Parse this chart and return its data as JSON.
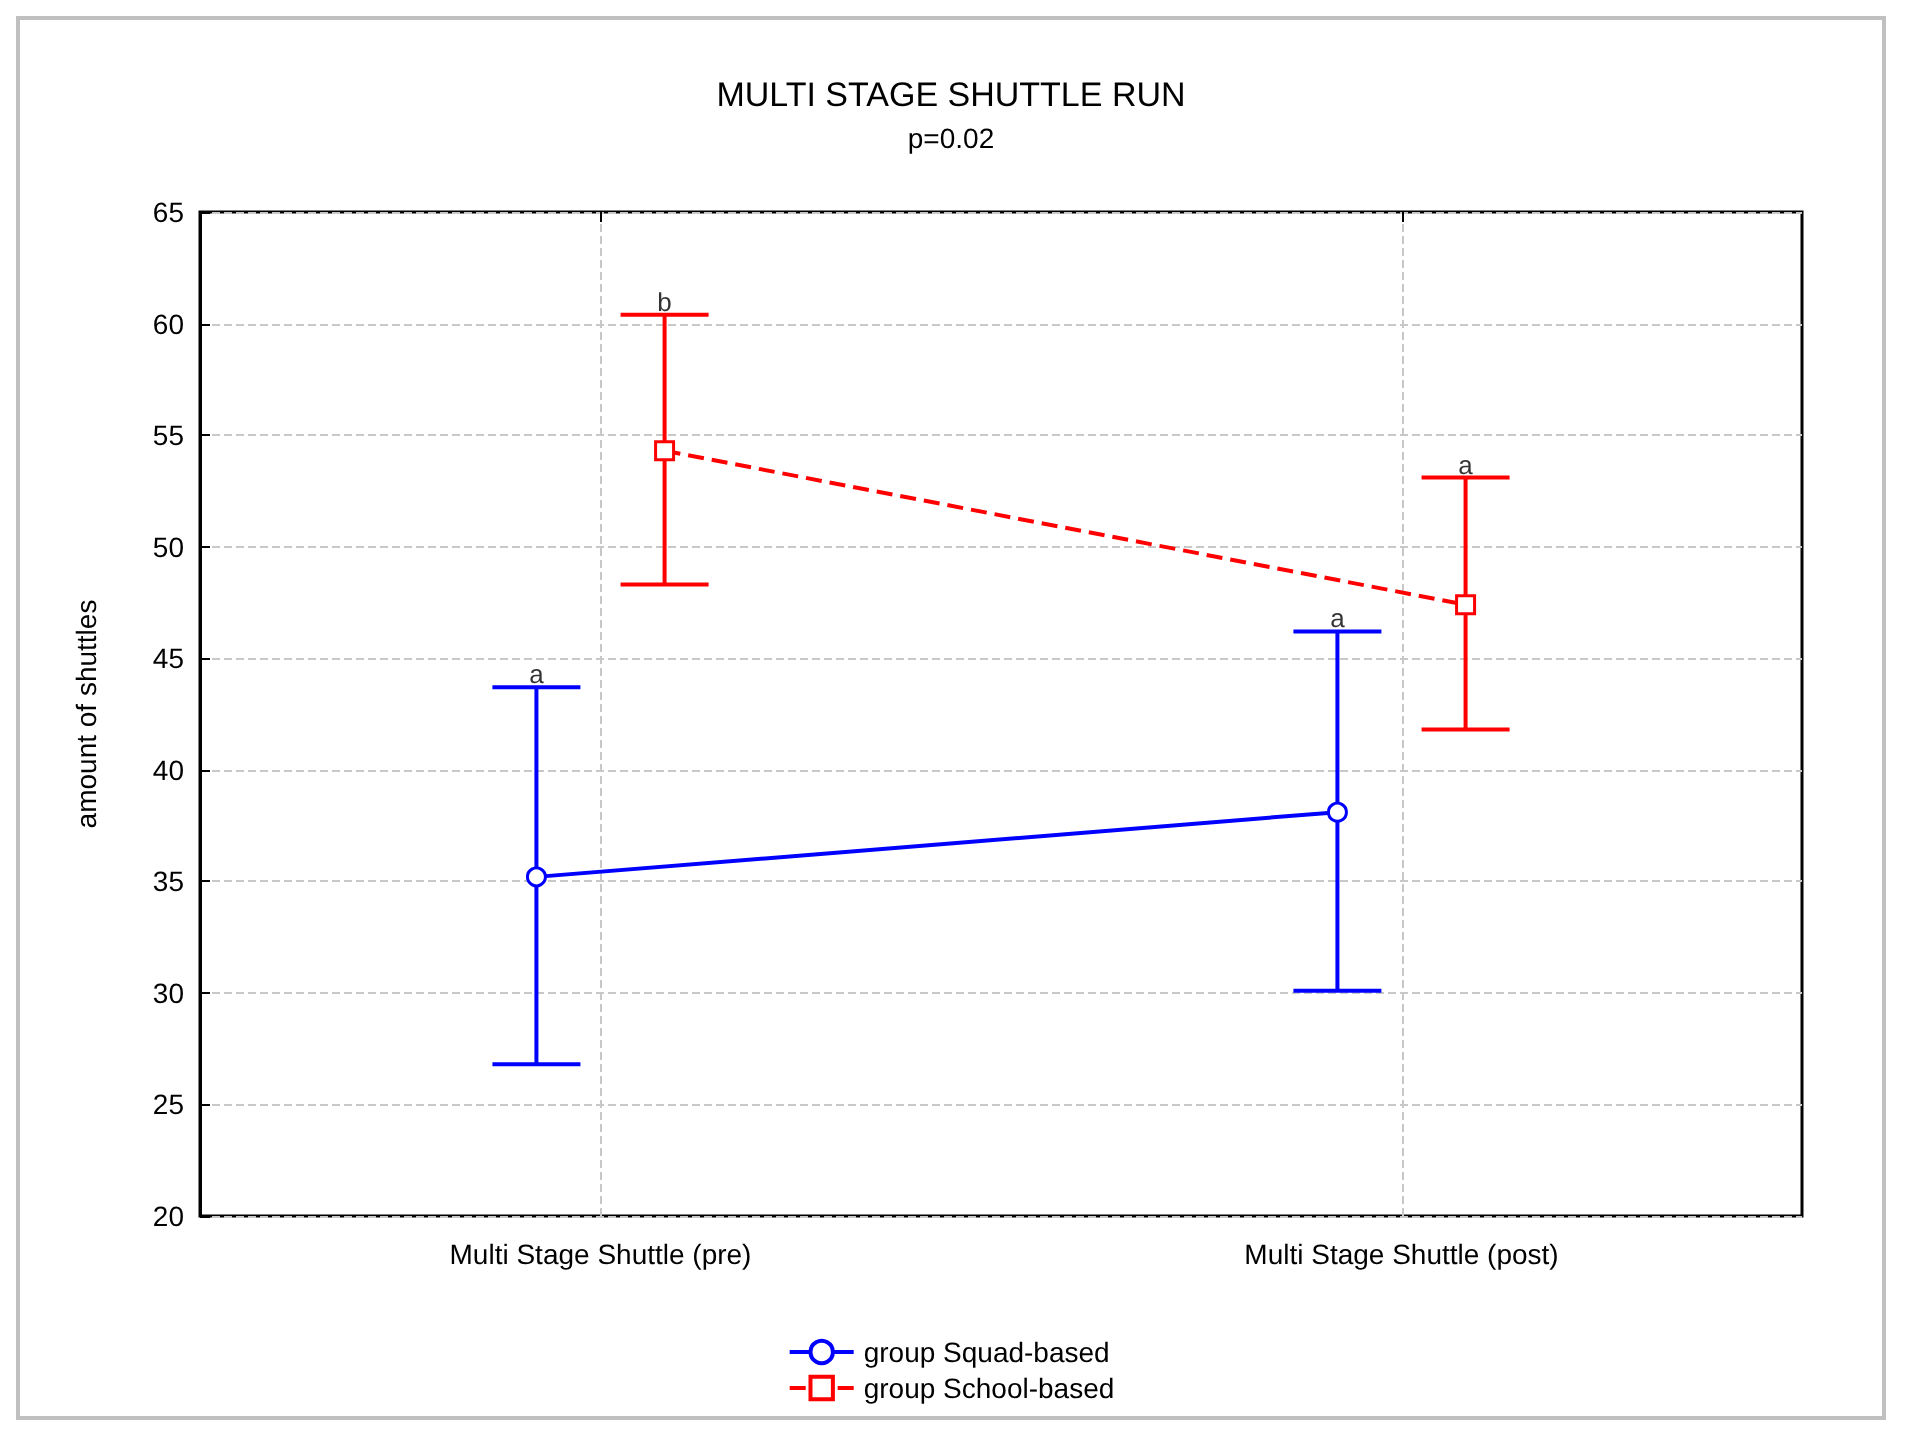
{
  "chart_data": {
    "type": "line",
    "title": "MULTI STAGE SHUTTLE RUN",
    "subtitle": "p=0.02",
    "ylabel": "amount of shuttles",
    "categories": [
      "Multi Stage Shuttle (pre)",
      "Multi Stage Shuttle (post)"
    ],
    "series": [
      {
        "name": "group Squad-based",
        "color": "#0000ff",
        "values": [
          35.2,
          38.1
        ],
        "errors": [
          [
            26.8,
            43.7
          ],
          [
            30.1,
            46.2
          ]
        ],
        "marker": "circle",
        "line_style": "solid"
      },
      {
        "name": "group School-based",
        "color": "#ff0000",
        "values": [
          54.3,
          47.4
        ],
        "errors": [
          [
            48.3,
            60.4
          ],
          [
            41.8,
            53.1
          ]
        ],
        "marker": "square",
        "line_style": "dashed"
      }
    ],
    "annotations": [
      "a",
      "b",
      "a",
      "a"
    ],
    "ylim": [
      20,
      65
    ],
    "yticks": [
      20,
      25,
      30,
      35,
      40,
      45,
      50,
      55,
      60,
      65
    ],
    "grid": true,
    "legend": "bottom"
  }
}
